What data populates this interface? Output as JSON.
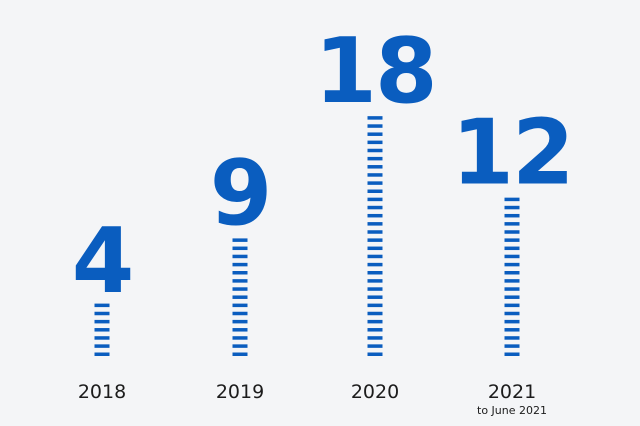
{
  "chart_data": {
    "type": "bar",
    "categories": [
      "2018",
      "2019",
      "2020",
      "2021"
    ],
    "values": [
      4,
      9,
      18,
      12
    ],
    "category_notes": [
      "",
      "",
      "",
      "to June 2021"
    ],
    "title": "",
    "xlabel": "",
    "ylabel": "",
    "ylim": [
      0,
      18
    ],
    "grid": false,
    "legend": "none",
    "style": "dashed-stem with large value number on top"
  },
  "colors": {
    "background": "#f4f5f7",
    "accent": "#0a5dbf",
    "text": "#1c1c1c"
  }
}
